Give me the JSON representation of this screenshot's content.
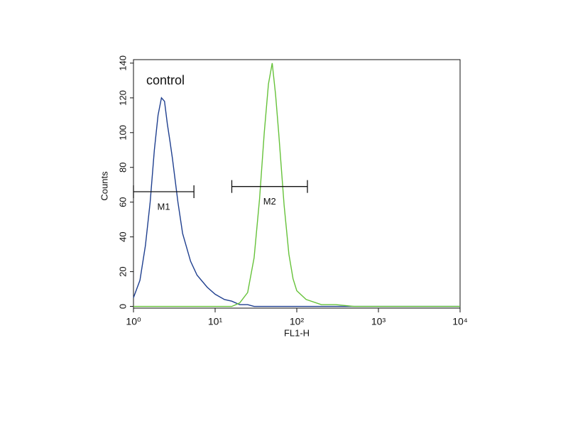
{
  "chart_data": {
    "type": "line",
    "x_label": "FL1-H",
    "y_label": "Counts",
    "x": [
      1,
      1.2,
      1.4,
      1.6,
      1.8,
      2,
      2.2,
      2.4,
      2.6,
      2.8,
      3,
      3.5,
      4,
      5,
      6,
      8,
      10,
      13,
      16,
      20,
      25,
      30,
      35,
      40,
      45,
      50,
      55,
      60,
      70,
      80,
      90,
      100,
      130,
      200,
      300,
      500,
      1000,
      3000,
      10000
    ],
    "series": [
      {
        "name": "control",
        "color": "#1f3f8f",
        "values": [
          5,
          15,
          35,
          60,
          90,
          110,
          120,
          118,
          105,
          95,
          85,
          60,
          42,
          26,
          18,
          11,
          7,
          4,
          3,
          1,
          1,
          0,
          0,
          0,
          0,
          0,
          0,
          0,
          0,
          0,
          0,
          0,
          0,
          0,
          0,
          0,
          0,
          0,
          0
        ]
      },
      {
        "color": "#66c23a",
        "values": [
          0,
          0,
          0,
          0,
          0,
          0,
          0,
          0,
          0,
          0,
          0,
          0,
          0,
          0,
          0,
          0,
          0,
          0,
          0,
          2,
          8,
          28,
          62,
          100,
          128,
          140,
          122,
          100,
          58,
          30,
          16,
          9,
          4,
          1,
          1,
          0,
          0,
          0,
          0
        ]
      }
    ],
    "gates": [
      {
        "label": "M1",
        "x": [
          1,
          5.5
        ],
        "y": 66
      },
      {
        "label": "M2",
        "x": [
          16,
          135
        ],
        "y": 69
      }
    ],
    "x_log": true,
    "xlim": [
      1,
      10000
    ],
    "xticks": [
      {
        "value": 1,
        "label": "10⁰"
      },
      {
        "value": 10,
        "label": "10¹"
      },
      {
        "value": 100,
        "label": "10²"
      },
      {
        "value": 1000,
        "label": "10³"
      },
      {
        "value": 10000,
        "label": "10⁴"
      }
    ],
    "ylim": [
      -1,
      142
    ],
    "yticks": [
      0,
      20,
      40,
      60,
      80,
      100,
      120,
      140
    ]
  }
}
